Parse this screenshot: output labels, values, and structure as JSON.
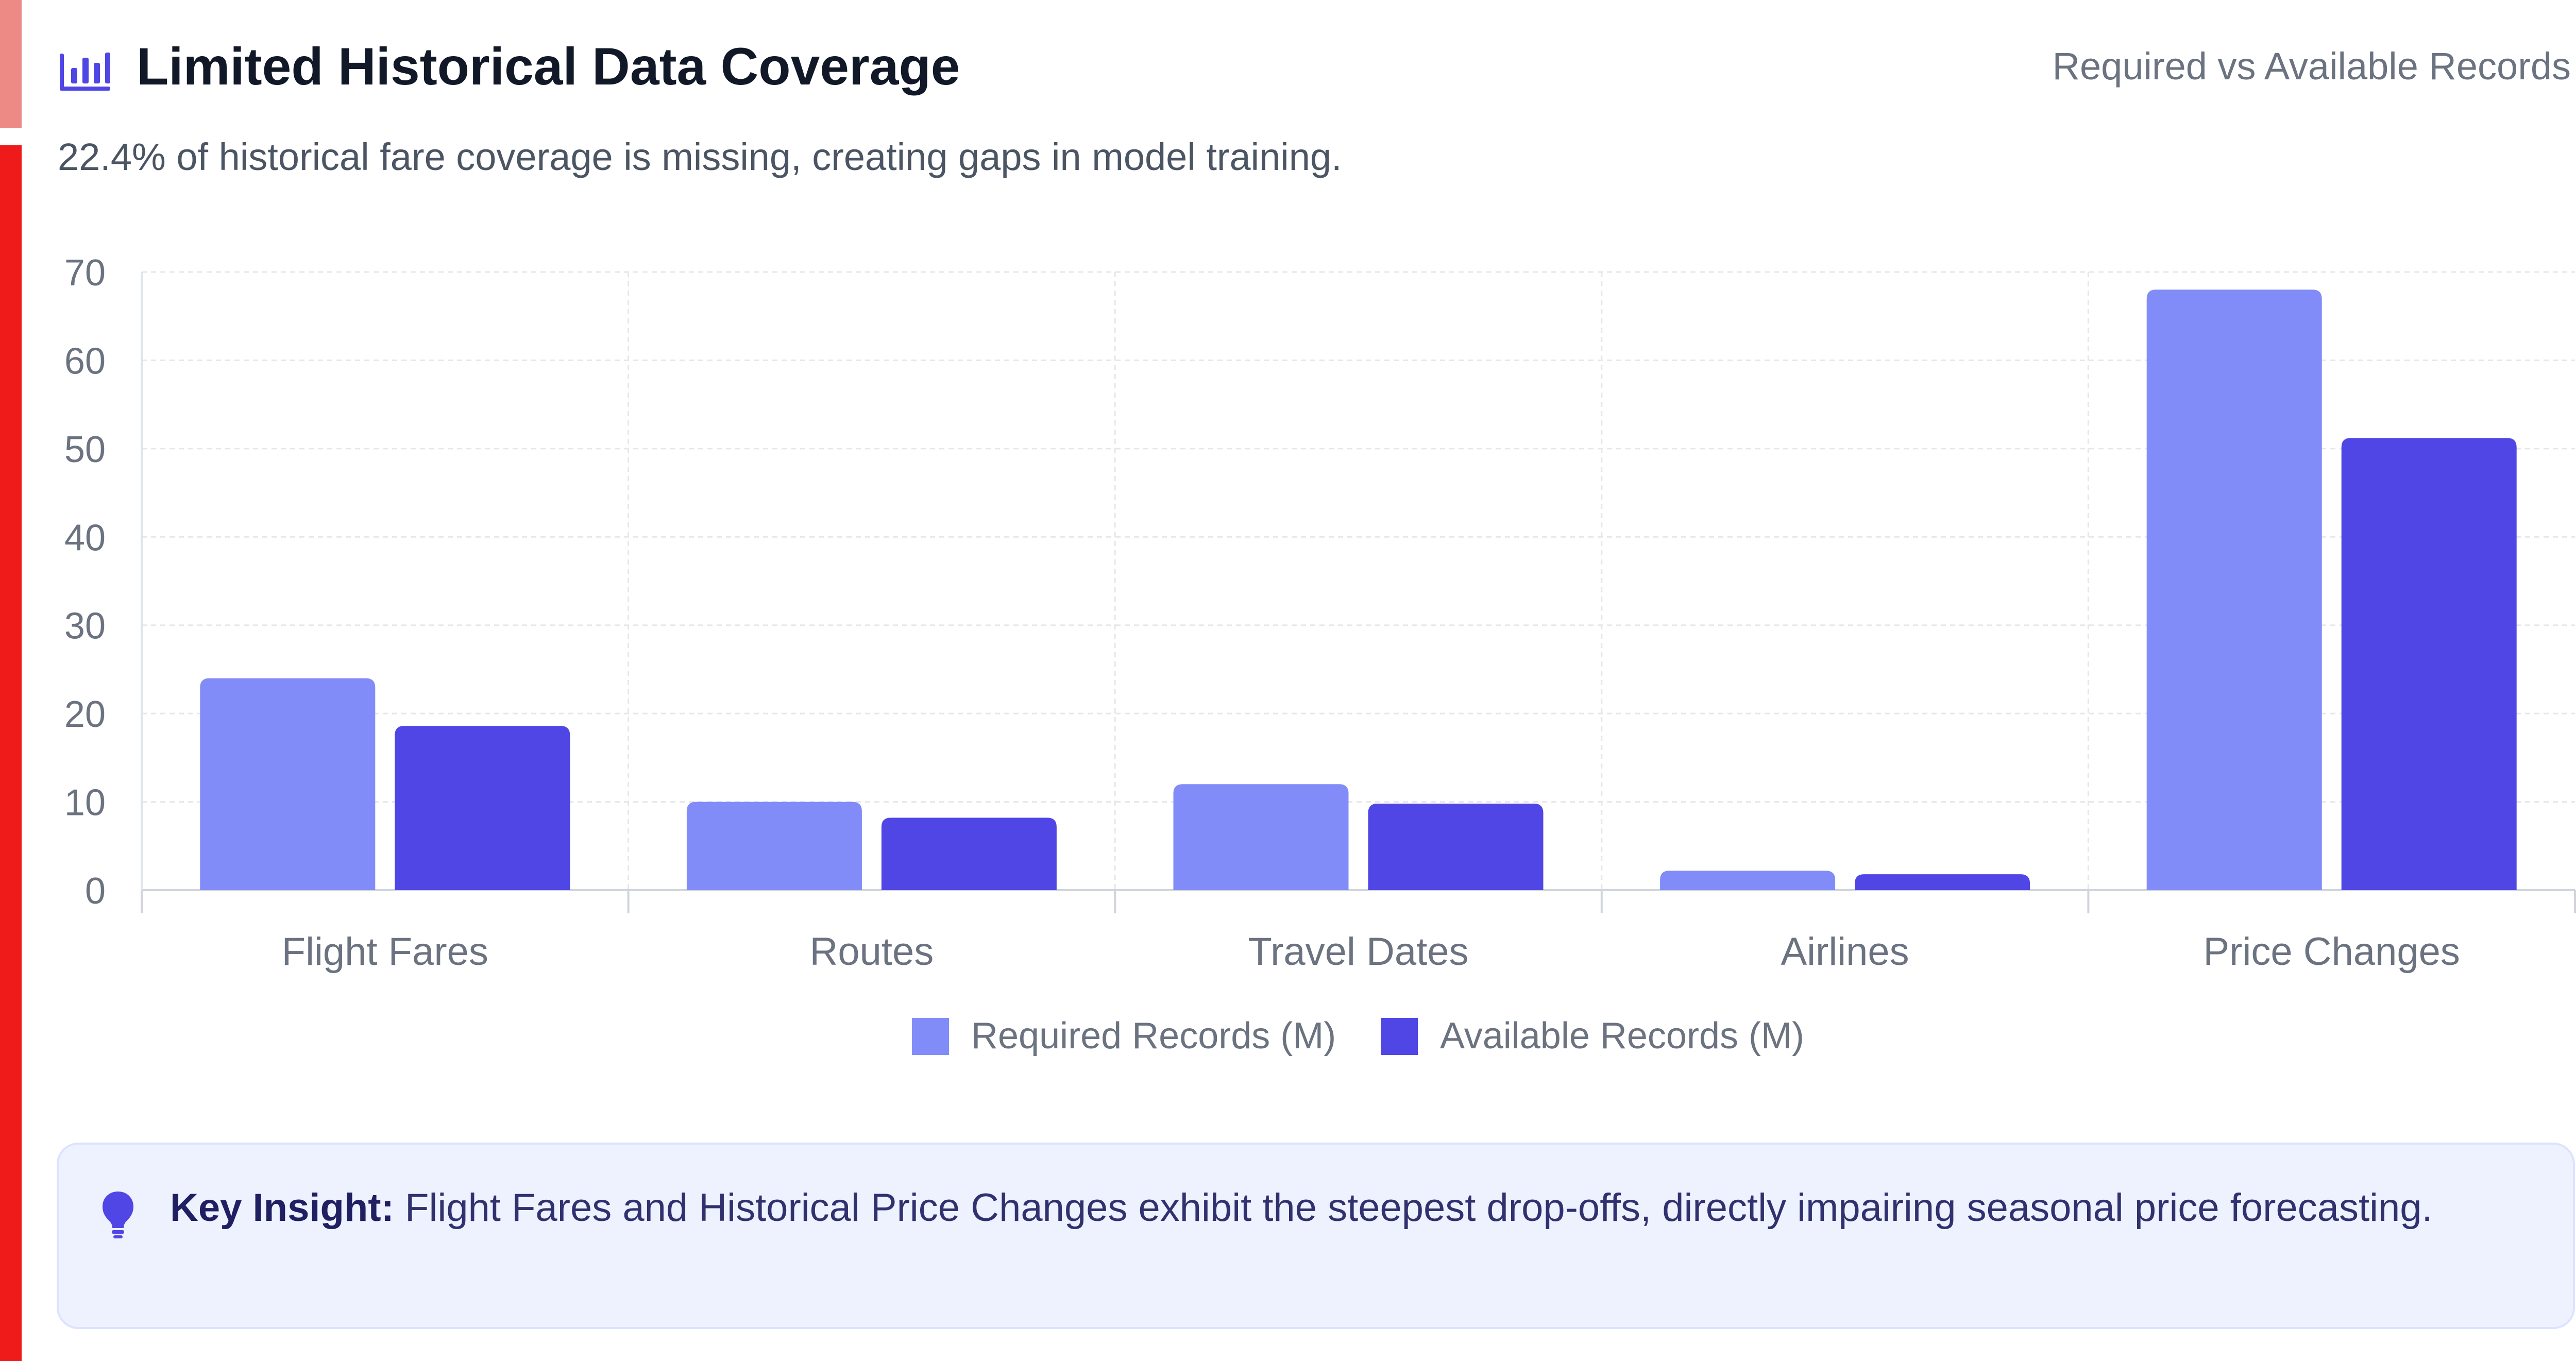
{
  "header": {
    "title": "Limited Historical Data Coverage",
    "right_label": "Required vs Available Records",
    "icon": "bar-chart-icon"
  },
  "subtitle": "22.4% of historical fare coverage is missing, creating gaps in model training.",
  "insight": {
    "icon": "lightbulb-icon",
    "label": "Key Insight:",
    "text": " Flight Fares and Historical Price Changes exhibit the steepest drop-offs, directly impairing seasonal price forecasting."
  },
  "colors": {
    "left_accent_top": "#ee8a85",
    "left_accent_main": "#ef1b1b",
    "required": "#818cf8",
    "available": "#4f46e5",
    "grid": "#e5e7eb",
    "axis_text": "#6b7280",
    "insight_bg": "#eef2ff"
  },
  "chart_data": {
    "type": "bar",
    "categories": [
      "Flight Fares",
      "Routes",
      "Travel Dates",
      "Airlines",
      "Price Changes"
    ],
    "series": [
      {
        "name": "Required Records (M)",
        "values": [
          24,
          10,
          12,
          2.2,
          68
        ]
      },
      {
        "name": "Available Records (M)",
        "values": [
          18.6,
          8.2,
          9.8,
          1.8,
          51.2
        ]
      }
    ],
    "title": "",
    "xlabel": "",
    "ylabel": "",
    "ylim": [
      0,
      70
    ],
    "yticks": [
      0,
      10,
      20,
      30,
      40,
      50,
      60,
      70
    ],
    "grid": true,
    "legend_position": "bottom-center"
  }
}
